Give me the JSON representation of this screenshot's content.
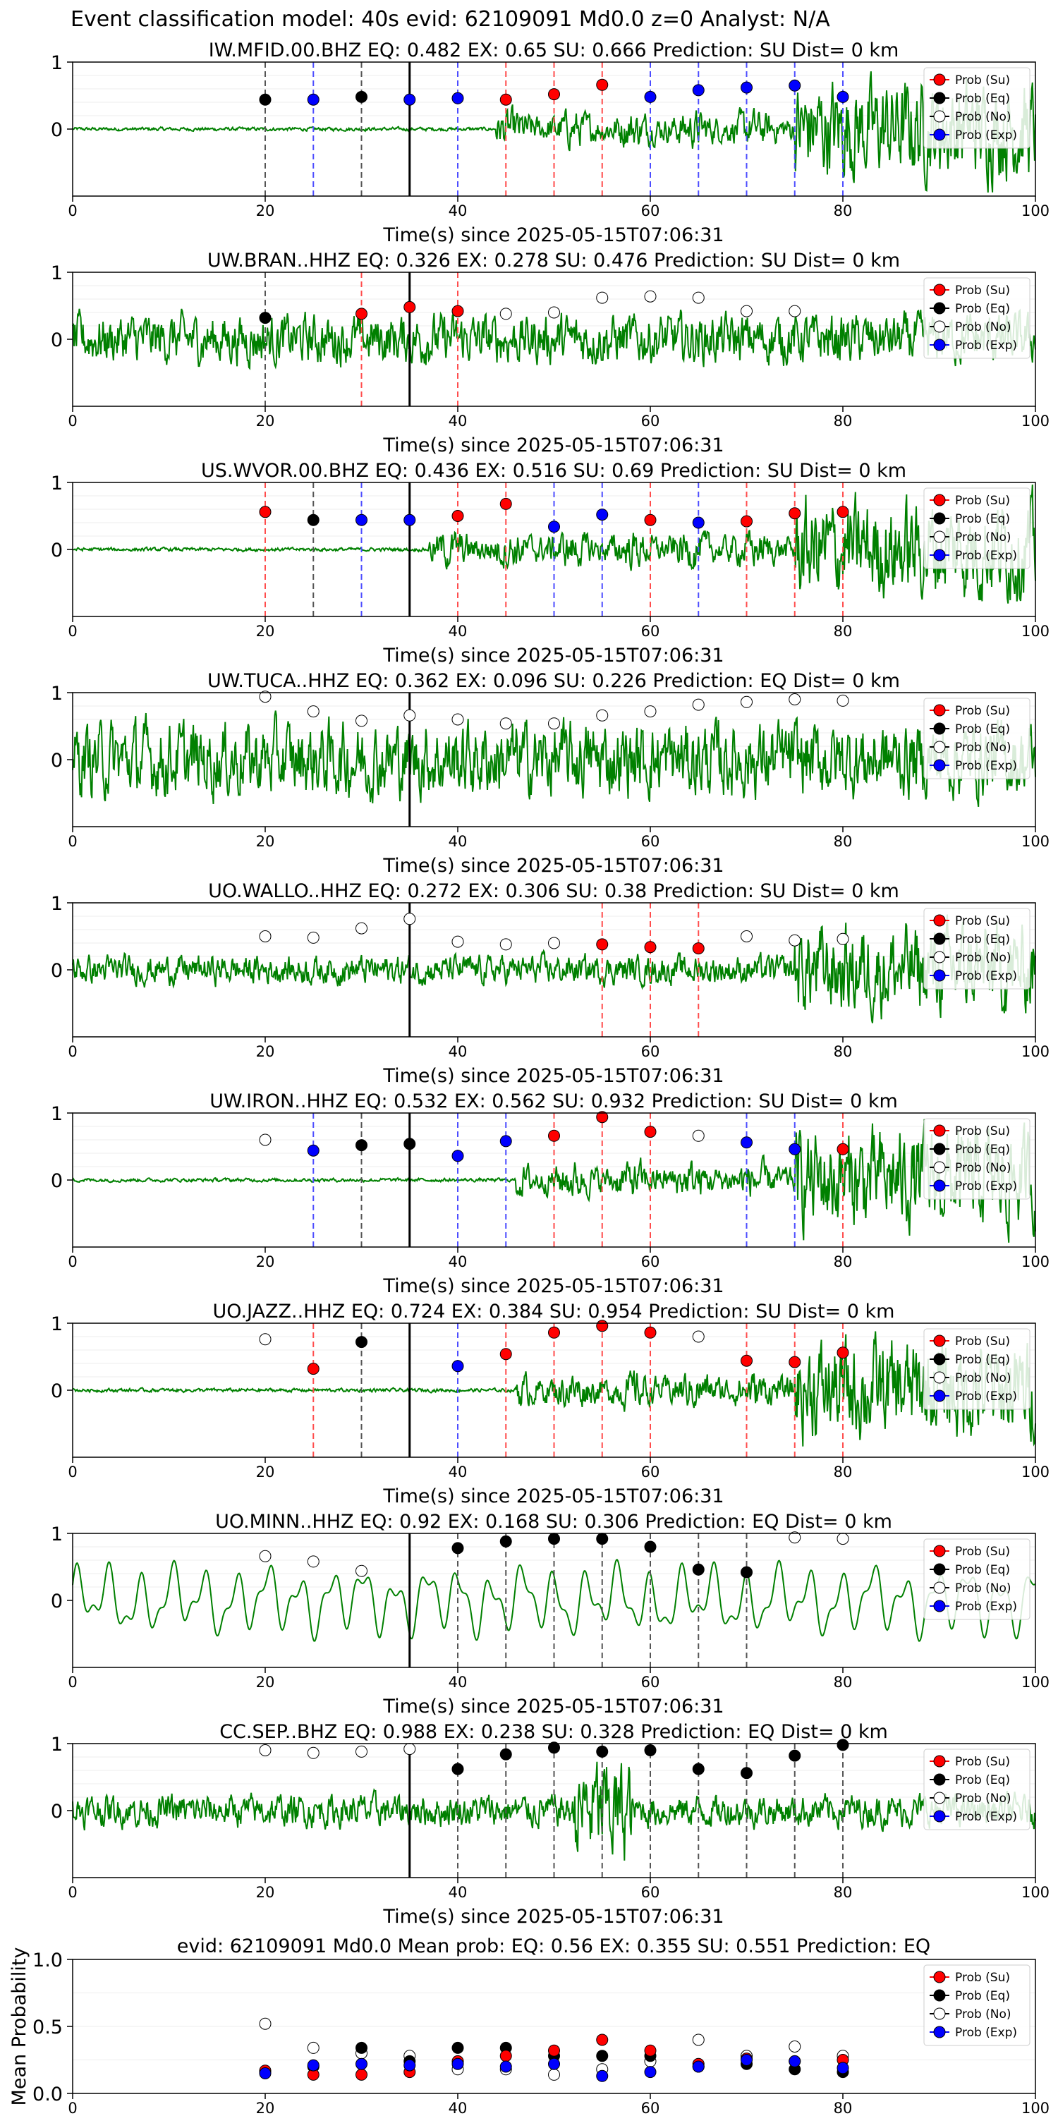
{
  "page_title": "Event classification model: 40s evid: 62109091 Md0.0 z=0 Analyst: N/A",
  "colors": {
    "su": "#ff0000",
    "eq": "#000000",
    "no": "#ffffff",
    "exp": "#0000ff",
    "waveform": "#008000",
    "su_line": "#ff4d4d",
    "eq_line": "#555555",
    "exp_line": "#4d4dff",
    "ref_line": "#000000"
  },
  "legend_labels": [
    "Prob (Su)",
    "Prob (Eq)",
    "Prob (No)",
    "Prob (Exp)"
  ],
  "x_axis": {
    "label": "Time(s) since 2025-05-15T07:06:31",
    "xlim": [
      0,
      100
    ],
    "ticks": [
      "0",
      "20",
      "40",
      "60",
      "80",
      "100"
    ]
  },
  "reference_time": 35,
  "chart_data": [
    {
      "type": "scatter",
      "title": "IW.MFID.00.BHZ   EQ: 0.482   EX: 0.65   SU: 0.666   Prediction: SU    Dist= 0 km",
      "ylim": [
        -1,
        1
      ],
      "yticks": [
        "1",
        "0"
      ],
      "waveform_onset": 44,
      "waveform_style": "quiet-then-burst",
      "x": [
        20,
        25,
        30,
        35,
        40,
        45,
        50,
        55,
        60,
        65,
        70,
        75,
        80
      ],
      "class": [
        "eq",
        "exp",
        "eq",
        "exp",
        "exp",
        "su",
        "su",
        "su",
        "exp",
        "exp",
        "exp",
        "exp",
        "exp"
      ],
      "prob": [
        0.44,
        0.44,
        0.48,
        0.44,
        0.46,
        0.44,
        0.52,
        0.66,
        0.48,
        0.58,
        0.62,
        0.65,
        0.48
      ]
    },
    {
      "type": "scatter",
      "title": "UW.BRAN..HHZ   EQ: 0.326   EX: 0.278  SU: 0.476   Prediction: SU    Dist= 0 km",
      "ylim": [
        -1,
        1
      ],
      "yticks": [
        "1",
        "0"
      ],
      "waveform_onset": 0,
      "waveform_style": "noisy",
      "x": [
        20,
        25,
        30,
        35,
        40,
        45,
        50,
        55,
        60,
        65,
        70,
        75,
        80
      ],
      "class": [
        "eq",
        "none",
        "su",
        "su",
        "su",
        "no",
        "no",
        "no",
        "no",
        "no",
        "no",
        "no",
        "none"
      ],
      "prob": [
        0.32,
        0,
        0.38,
        0.48,
        0.42,
        0.38,
        0.4,
        0.62,
        0.64,
        0.62,
        0.42,
        0.42,
        0
      ]
    },
    {
      "type": "scatter",
      "title": "US.WVOR.00.BHZ   EQ: 0.436  EX: 0.516  SU: 0.69   Prediction: SU    Dist= 0 km",
      "ylim": [
        -1,
        1
      ],
      "yticks": [
        "1",
        "0"
      ],
      "waveform_onset": 37,
      "waveform_style": "quiet-then-burst",
      "x": [
        20,
        25,
        30,
        35,
        40,
        45,
        50,
        55,
        60,
        65,
        70,
        75,
        80
      ],
      "class": [
        "su",
        "eq",
        "exp",
        "exp",
        "su",
        "su",
        "exp",
        "exp",
        "su",
        "exp",
        "su",
        "su",
        "su"
      ],
      "prob": [
        0.56,
        0.44,
        0.44,
        0.44,
        0.5,
        0.68,
        0.34,
        0.52,
        0.44,
        0.4,
        0.42,
        0.54,
        0.56
      ]
    },
    {
      "type": "scatter",
      "title": "UW.TUCA..HHZ   EQ: 0.362  EX: 0.096  SU: 0.226   Prediction: EQ    Dist= 0 km",
      "ylim": [
        -1,
        1
      ],
      "yticks": [
        "1",
        "0"
      ],
      "waveform_onset": 0,
      "waveform_style": "noisy-strong",
      "x": [
        20,
        25,
        30,
        35,
        40,
        45,
        50,
        55,
        60,
        65,
        70,
        75,
        80
      ],
      "class": [
        "no",
        "no",
        "no",
        "no",
        "no",
        "no",
        "no",
        "no",
        "no",
        "no",
        "no",
        "no",
        "no"
      ],
      "prob": [
        0.94,
        0.72,
        0.58,
        0.66,
        0.6,
        0.54,
        0.54,
        0.66,
        0.72,
        0.82,
        0.86,
        0.9,
        0.88
      ]
    },
    {
      "type": "scatter",
      "title": "UO.WALLO..HHZ   EQ: 0.272  EX: 0.306  SU: 0.38   Prediction: SU    Dist= 0 km",
      "ylim": [
        -1,
        1
      ],
      "yticks": [
        "1",
        "0"
      ],
      "waveform_onset": 0,
      "waveform_style": "noisy-growing",
      "x": [
        20,
        25,
        30,
        35,
        40,
        45,
        50,
        55,
        60,
        65,
        70,
        75,
        80
      ],
      "class": [
        "no",
        "no",
        "no",
        "no",
        "no",
        "no",
        "no",
        "su",
        "su",
        "su",
        "no",
        "no",
        "no"
      ],
      "prob": [
        0.5,
        0.48,
        0.62,
        0.76,
        0.42,
        0.38,
        0.4,
        0.38,
        0.34,
        0.32,
        0.5,
        0.44,
        0.46
      ]
    },
    {
      "type": "scatter",
      "title": "UW.IRON..HHZ   EQ: 0.532  EX: 0.562  SU: 0.932   Prediction: SU    Dist= 0 km",
      "ylim": [
        -1,
        1
      ],
      "yticks": [
        "1",
        "0"
      ],
      "waveform_onset": 46,
      "waveform_style": "quiet-then-burst",
      "x": [
        20,
        25,
        30,
        35,
        40,
        45,
        50,
        55,
        60,
        65,
        70,
        75,
        80
      ],
      "class": [
        "no",
        "exp",
        "eq",
        "eq",
        "exp",
        "exp",
        "su",
        "su",
        "su",
        "no",
        "exp",
        "exp",
        "su"
      ],
      "prob": [
        0.6,
        0.44,
        0.52,
        0.54,
        0.36,
        0.58,
        0.66,
        0.94,
        0.72,
        0.66,
        0.56,
        0.46,
        0.46
      ]
    },
    {
      "type": "scatter",
      "title": "UO.JAZZ..HHZ   EQ: 0.724  EX: 0.384  SU: 0.954   Prediction: SU    Dist= 0 km",
      "ylim": [
        -1,
        1
      ],
      "yticks": [
        "1",
        "0"
      ],
      "waveform_onset": 46,
      "waveform_style": "quiet-then-burst",
      "x": [
        20,
        25,
        30,
        35,
        40,
        45,
        50,
        55,
        60,
        65,
        70,
        75,
        80
      ],
      "class": [
        "no",
        "su",
        "eq",
        "none",
        "exp",
        "su",
        "su",
        "su",
        "su",
        "no",
        "su",
        "su",
        "su"
      ],
      "prob": [
        0.76,
        0.32,
        0.72,
        0,
        0.36,
        0.54,
        0.86,
        0.96,
        0.86,
        0.8,
        0.44,
        0.42,
        0.56
      ]
    },
    {
      "type": "scatter",
      "title": "UO.MINN..HHZ   EQ: 0.92  EX: 0.168  SU: 0.306   Prediction: EQ    Dist= 0 km",
      "ylim": [
        -1,
        1
      ],
      "yticks": [
        "1",
        "0"
      ],
      "waveform_onset": 0,
      "waveform_style": "long-period",
      "x": [
        20,
        25,
        30,
        35,
        40,
        45,
        50,
        55,
        60,
        65,
        70,
        75,
        80
      ],
      "class": [
        "no",
        "no",
        "no",
        "none",
        "eq",
        "eq",
        "eq",
        "eq",
        "eq",
        "eq",
        "eq",
        "no",
        "no"
      ],
      "prob": [
        0.66,
        0.58,
        0.44,
        0,
        0.78,
        0.88,
        0.92,
        0.92,
        0.8,
        0.46,
        0.42,
        0.94,
        0.92
      ]
    },
    {
      "type": "scatter",
      "title": "CC.SEP..BHZ   EQ: 0.988  EX: 0.238  SU: 0.328   Prediction: EQ    Dist= 0 km",
      "ylim": [
        -1,
        1
      ],
      "yticks": [
        "1",
        "0"
      ],
      "waveform_onset": 0,
      "waveform_style": "noisy-spike",
      "x": [
        20,
        25,
        30,
        35,
        40,
        45,
        50,
        55,
        60,
        65,
        70,
        75,
        80
      ],
      "class": [
        "no",
        "no",
        "no",
        "no",
        "eq",
        "eq",
        "eq",
        "eq",
        "eq",
        "eq",
        "eq",
        "eq",
        "eq"
      ],
      "prob": [
        0.9,
        0.86,
        0.88,
        0.92,
        0.62,
        0.84,
        0.94,
        0.88,
        0.9,
        0.62,
        0.56,
        0.82,
        0.98
      ]
    }
  ],
  "mean_chart": {
    "type": "scatter",
    "title": "evid: 62109091   Md0.0    Mean prob:    EQ: 0.56   EX: 0.355   SU: 0.551    Prediction: EQ",
    "ylabel": "Mean Probability",
    "ylim": [
      0,
      1
    ],
    "yticks": [
      "1.0",
      "0.5",
      "0.0"
    ],
    "x": [
      20,
      25,
      30,
      35,
      40,
      45,
      50,
      55,
      60,
      65,
      70,
      75,
      80
    ],
    "series": [
      {
        "name": "Prob (No)",
        "class": "no",
        "values": [
          0.52,
          0.34,
          0.3,
          0.28,
          0.18,
          0.18,
          0.14,
          0.18,
          0.24,
          0.4,
          0.28,
          0.35,
          0.28
        ]
      },
      {
        "name": "Prob (Eq)",
        "class": "eq",
        "values": [
          0.16,
          0.2,
          0.34,
          0.24,
          0.34,
          0.34,
          0.28,
          0.28,
          0.28,
          0.2,
          0.22,
          0.18,
          0.16
        ]
      },
      {
        "name": "Prob (Su)",
        "class": "su",
        "values": [
          0.17,
          0.14,
          0.14,
          0.16,
          0.24,
          0.28,
          0.32,
          0.4,
          0.32,
          0.22,
          0.26,
          0.24,
          0.25
        ]
      },
      {
        "name": "Prob (Exp)",
        "class": "exp",
        "values": [
          0.15,
          0.21,
          0.22,
          0.21,
          0.22,
          0.2,
          0.22,
          0.13,
          0.16,
          0.2,
          0.25,
          0.24,
          0.19
        ]
      }
    ]
  }
}
